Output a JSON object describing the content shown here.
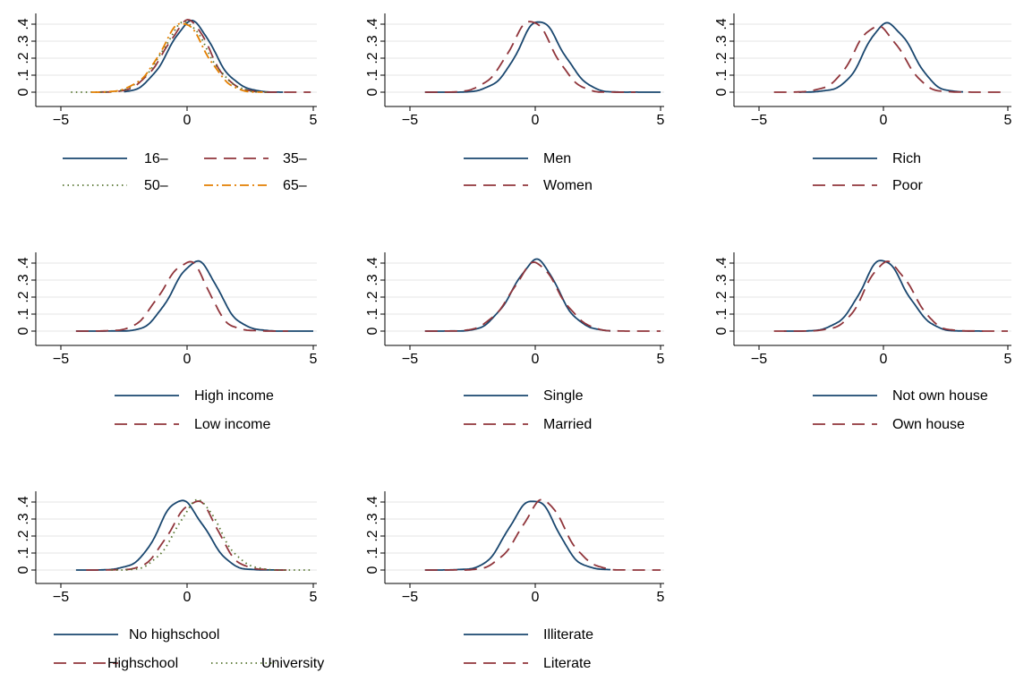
{
  "chart_data": [
    {
      "type": "line",
      "xlim": [
        -5,
        5
      ],
      "ylim": [
        0,
        0.4
      ],
      "xticks": [
        "−5",
        "0",
        "5"
      ],
      "yticks": [
        "0",
        ".1",
        ".2",
        ".3",
        ".4"
      ],
      "grid": "horizontal",
      "legend_placement": "bottom",
      "series": [
        {
          "name": "16–",
          "color": "#1a476f",
          "dash": "solid",
          "peak": 0.41,
          "mu": 0.1,
          "sigma_left": 0.85,
          "sigma_right": 0.95,
          "xmin": -2.5,
          "xmax": 3.8
        },
        {
          "name": "35–",
          "color": "#90353b",
          "dash": "dash",
          "peak": 0.41,
          "mu": 0.05,
          "sigma_left": 0.95,
          "sigma_right": 0.85,
          "xmin": -3.5,
          "xmax": 4.9
        },
        {
          "name": "50–",
          "color": "#55752f",
          "dash": "dot",
          "peak": 0.4,
          "mu": -0.05,
          "sigma_left": 0.95,
          "sigma_right": 0.9,
          "xmin": -4.6,
          "xmax": 3.2
        },
        {
          "name": "65–",
          "color": "#e37e00",
          "dash": "dashdot",
          "peak": 0.4,
          "mu": -0.1,
          "sigma_left": 0.95,
          "sigma_right": 0.85,
          "xmin": -3.8,
          "xmax": 3.0
        }
      ]
    },
    {
      "type": "line",
      "xlim": [
        -5,
        5
      ],
      "ylim": [
        0,
        0.4
      ],
      "xticks": [
        "−5",
        "0",
        "5"
      ],
      "yticks": [
        "0",
        ".1",
        ".2",
        ".3",
        ".4"
      ],
      "grid": "horizontal",
      "legend_placement": "bottom",
      "series": [
        {
          "name": "Men",
          "color": "#1a476f",
          "dash": "solid",
          "peak": 0.41,
          "mu": 0.2,
          "sigma_left": 0.9,
          "sigma_right": 0.9,
          "xmin": -4.4,
          "xmax": 5.0
        },
        {
          "name": "Women",
          "color": "#90353b",
          "dash": "dash",
          "peak": 0.41,
          "mu": -0.1,
          "sigma_left": 0.95,
          "sigma_right": 0.85,
          "xmin": -4.4,
          "xmax": 4.0
        }
      ]
    },
    {
      "type": "line",
      "xlim": [
        -5,
        5
      ],
      "ylim": [
        0,
        0.4
      ],
      "xticks": [
        "−5",
        "0",
        "5"
      ],
      "yticks": [
        "0",
        ".1",
        ".2",
        ".3",
        ".4"
      ],
      "grid": "horizontal",
      "legend_placement": "bottom",
      "series": [
        {
          "name": "Rich",
          "color": "#1a476f",
          "dash": "solid",
          "peak": 0.41,
          "mu": 0.2,
          "sigma_left": 0.9,
          "sigma_right": 0.9,
          "xmin": -3.4,
          "xmax": 3.2
        },
        {
          "name": "Poor",
          "color": "#90353b",
          "dash": "dash",
          "peak": 0.39,
          "mu": -0.2,
          "sigma_left": 0.95,
          "sigma_right": 0.9,
          "xmin": -4.4,
          "xmax": 4.8
        }
      ]
    },
    {
      "type": "line",
      "xlim": [
        -5,
        5
      ],
      "ylim": [
        0,
        0.4
      ],
      "xticks": [
        "−5",
        "0",
        "5"
      ],
      "yticks": [
        "0",
        ".1",
        ".2",
        ".3",
        ".4"
      ],
      "grid": "horizontal",
      "legend_placement": "bottom",
      "series": [
        {
          "name": "High income",
          "color": "#1a476f",
          "dash": "solid",
          "peak": 0.41,
          "mu": 0.3,
          "sigma_left": 0.85,
          "sigma_right": 0.9,
          "xmin": -4.4,
          "xmax": 5.0
        },
        {
          "name": "Low income",
          "color": "#90353b",
          "dash": "dash",
          "peak": 0.41,
          "mu": 0.0,
          "sigma_left": 0.95,
          "sigma_right": 0.8,
          "xmin": -4.4,
          "xmax": 4.0
        }
      ]
    },
    {
      "type": "line",
      "xlim": [
        -5,
        5
      ],
      "ylim": [
        0,
        0.4
      ],
      "xticks": [
        "−5",
        "0",
        "5"
      ],
      "yticks": [
        "0",
        ".1",
        ".2",
        ".3",
        ".4"
      ],
      "grid": "horizontal",
      "legend_placement": "bottom",
      "series": [
        {
          "name": "Single",
          "color": "#1a476f",
          "dash": "solid",
          "peak": 0.41,
          "mu": 0.0,
          "sigma_left": 0.9,
          "sigma_right": 0.9,
          "xmin": -4.4,
          "xmax": 3.0
        },
        {
          "name": "Married",
          "color": "#90353b",
          "dash": "dash",
          "peak": 0.39,
          "mu": 0.0,
          "sigma_left": 0.95,
          "sigma_right": 0.95,
          "xmin": -4.4,
          "xmax": 5.0
        }
      ]
    },
    {
      "type": "line",
      "xlim": [
        -5,
        5
      ],
      "ylim": [
        0,
        0.4
      ],
      "xticks": [
        "−5",
        "0",
        "5"
      ],
      "yticks": [
        "0",
        ".1",
        ".2",
        ".3",
        ".4"
      ],
      "grid": "horizontal",
      "legend_placement": "bottom",
      "series": [
        {
          "name": "Not own house",
          "color": "#1a476f",
          "dash": "solid",
          "peak": 0.41,
          "mu": 0.0,
          "sigma_left": 0.9,
          "sigma_right": 0.9,
          "xmin": -4.0,
          "xmax": 4.0
        },
        {
          "name": "Own house",
          "color": "#90353b",
          "dash": "dash",
          "peak": 0.41,
          "mu": 0.2,
          "sigma_left": 0.9,
          "sigma_right": 0.9,
          "xmin": -4.4,
          "xmax": 5.0
        }
      ]
    },
    {
      "type": "line",
      "xlim": [
        -5,
        5
      ],
      "ylim": [
        0,
        0.4
      ],
      "xticks": [
        "−5",
        "0",
        "5"
      ],
      "yticks": [
        "0",
        ".1",
        ".2",
        ".3",
        ".4"
      ],
      "grid": "horizontal",
      "legend_placement": "bottom",
      "series": [
        {
          "name": "No highschool",
          "color": "#1a476f",
          "dash": "solid",
          "peak": 0.41,
          "mu": -0.2,
          "sigma_left": 0.9,
          "sigma_right": 0.9,
          "xmin": -4.4,
          "xmax": 3.8
        },
        {
          "name": "Highschool",
          "color": "#90353b",
          "dash": "dash",
          "peak": 0.41,
          "mu": 0.3,
          "sigma_left": 0.9,
          "sigma_right": 0.85,
          "xmin": -4.0,
          "xmax": 4.0
        },
        {
          "name": "University",
          "color": "#55752f",
          "dash": "dot",
          "peak": 0.4,
          "mu": 0.4,
          "sigma_left": 0.85,
          "sigma_right": 0.9,
          "xmin": -3.0,
          "xmax": 5.0
        }
      ]
    },
    {
      "type": "line",
      "xlim": [
        -5,
        5
      ],
      "ylim": [
        0,
        0.4
      ],
      "xticks": [
        "−5",
        "0",
        "5"
      ],
      "yticks": [
        "0",
        ".1",
        ".2",
        ".3",
        ".4"
      ],
      "grid": "horizontal",
      "legend_placement": "bottom",
      "series": [
        {
          "name": "Illiterate",
          "color": "#1a476f",
          "dash": "solid",
          "peak": 0.42,
          "mu": -0.1,
          "sigma_left": 0.9,
          "sigma_right": 0.9,
          "xmin": -4.4,
          "xmax": 3.0
        },
        {
          "name": "Literate",
          "color": "#90353b",
          "dash": "dash",
          "peak": 0.4,
          "mu": 0.3,
          "sigma_left": 0.9,
          "sigma_right": 0.9,
          "xmin": -4.4,
          "xmax": 5.0
        }
      ]
    }
  ]
}
